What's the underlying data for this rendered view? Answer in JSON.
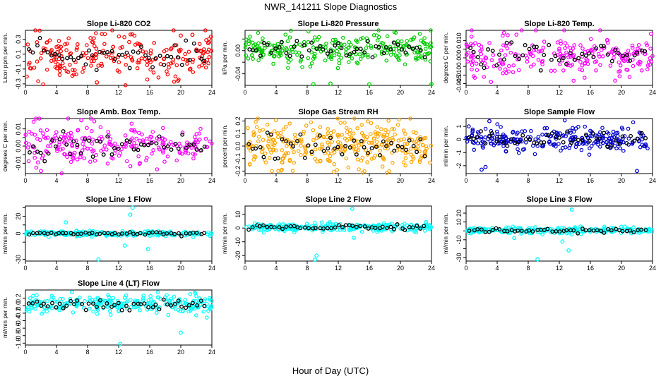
{
  "figure": {
    "title": "NWR_141211  Slope Diagnostics",
    "xlabel": "Hour of Day (UTC)"
  },
  "chart_data": [
    {
      "type": "scatter",
      "title": "Slope Li-820 CO2",
      "ylabel": "Licor ppm per min.",
      "xlim": [
        0,
        24
      ],
      "xticks": [
        0,
        4,
        8,
        12,
        16,
        20,
        24
      ],
      "ylim": [
        -0.32,
        0.42
      ],
      "yticks": [
        -0.3,
        -0.2,
        -0.1,
        0.0,
        0.1,
        0.2,
        0.3
      ],
      "ytick_labels": [
        "-0.3",
        "",
        "-0.1",
        "",
        "0.1",
        "",
        "0.3"
      ],
      "color": "#ff0000",
      "spread": 0.15,
      "center": 0.07,
      "n": 220,
      "outliers": [
        {
          "x": 20,
          "y": 0.35
        },
        {
          "x": 21.5,
          "y": 0.36
        },
        {
          "x": 9.2,
          "y": -0.28
        }
      ]
    },
    {
      "type": "scatter",
      "title": "Slope Li-820 Pressure",
      "ylabel": "kPa per min.",
      "xlim": [
        0,
        24
      ],
      "xticks": [
        0,
        4,
        8,
        12,
        16,
        20,
        24
      ],
      "ylim": [
        -0.06,
        0.035
      ],
      "yticks": [
        -0.04,
        -0.02,
        0.0,
        0.02
      ],
      "ytick_labels": [
        "-0.04",
        "",
        "0.00",
        ""
      ],
      "color": "#00cc00",
      "spread": 0.012,
      "center": 0.002,
      "n": 260,
      "outliers": [
        {
          "x": 8.8,
          "y": -0.058
        },
        {
          "x": 11,
          "y": -0.057
        },
        {
          "x": 16,
          "y": -0.058
        },
        {
          "x": 24,
          "y": -0.058
        },
        {
          "x": 5.6,
          "y": -0.02
        }
      ]
    },
    {
      "type": "scatter",
      "title": "Slope Li-820 Temp.",
      "ylabel": "degrees C per min.",
      "xlim": [
        0,
        24
      ],
      "xticks": [
        0,
        4,
        8,
        12,
        16,
        20,
        24
      ],
      "ylim": [
        -0.016,
        0.016
      ],
      "yticks": [
        -0.015,
        -0.01,
        -0.005,
        0.0,
        0.005,
        0.01
      ],
      "ytick_labels": [
        "-0.015",
        "-0.010",
        "",
        "0.000",
        "",
        "0.010"
      ],
      "color": "#ff00ff",
      "spread": 0.006,
      "center": 0.002,
      "n": 230,
      "outliers": [
        {
          "x": 3.2,
          "y": -0.014
        },
        {
          "x": 23.8,
          "y": 0.014
        }
      ]
    },
    {
      "type": "scatter",
      "title": "Slope Amb. Box Temp.",
      "ylabel": "degrees C per min.",
      "xlim": [
        0,
        24
      ],
      "xticks": [
        0,
        4,
        8,
        12,
        16,
        20,
        24
      ],
      "ylim": [
        -0.016,
        0.016
      ],
      "yticks": [
        -0.01,
        -0.005,
        0.0,
        0.005,
        0.01
      ],
      "ytick_labels": [
        "-0.01",
        "",
        "0.00",
        "",
        "0.01"
      ],
      "color": "#ff00ff",
      "spread": 0.006,
      "center": 0.0005,
      "n": 230,
      "outliers": [
        {
          "x": 2,
          "y": -0.0145
        },
        {
          "x": 7.2,
          "y": 0.015
        }
      ]
    },
    {
      "type": "scatter",
      "title": "Slope Gas Stream RH",
      "ylabel": "percent per min.",
      "xlim": [
        0,
        24
      ],
      "xticks": [
        0,
        4,
        8,
        12,
        16,
        20,
        24
      ],
      "ylim": [
        -0.22,
        0.22
      ],
      "yticks": [
        -0.2,
        -0.1,
        0.0,
        0.1,
        0.2
      ],
      "ytick_labels": [
        "-0.2",
        "-0.1",
        "0.0",
        "0.1",
        "0.2"
      ],
      "color": "#ffa500",
      "spread": 0.09,
      "center": 0.0,
      "n": 320,
      "outliers": []
    },
    {
      "type": "scatter",
      "title": "Slope Sample Flow",
      "ylabel": "ml/min per min.",
      "xlim": [
        0,
        24
      ],
      "xticks": [
        0,
        4,
        8,
        12,
        16,
        20,
        24
      ],
      "ylim": [
        -2.6,
        1.6
      ],
      "yticks": [
        -2,
        -1,
        0,
        1
      ],
      "ytick_labels": [
        "-2",
        "-1",
        "0",
        "1"
      ],
      "color": "#0000cc",
      "spread": 0.45,
      "center": 0.0,
      "n": 260,
      "outliers": [
        {
          "x": 2,
          "y": -2.3
        },
        {
          "x": 2.5,
          "y": -2.1
        },
        {
          "x": 22,
          "y": -2.4
        },
        {
          "x": 3,
          "y": 1.4
        }
      ]
    },
    {
      "type": "scatter",
      "title": "Slope Line 1 Flow",
      "ylabel": "ml/min per min.",
      "xlim": [
        0,
        24
      ],
      "xticks": [
        0,
        4,
        8,
        12,
        16,
        20,
        24
      ],
      "ylim": [
        -32,
        32
      ],
      "yticks": [
        -30,
        -10,
        0,
        10,
        20,
        30
      ],
      "ytick_labels": [
        "-30",
        "",
        "0",
        "",
        "20",
        ""
      ],
      "color": "#00ffff",
      "spread": 1.5,
      "center": 0.0,
      "n": 240,
      "outliers": [
        {
          "x": 13.8,
          "y": 30
        },
        {
          "x": 9.4,
          "y": -30
        },
        {
          "x": 13.5,
          "y": 22
        },
        {
          "x": 5.2,
          "y": 13
        },
        {
          "x": 12.8,
          "y": -14
        },
        {
          "x": 15.8,
          "y": -18
        }
      ]
    },
    {
      "type": "scatter",
      "title": "Slope Line 2 Flow",
      "ylabel": "ml/min per min.",
      "xlim": [
        0,
        24
      ],
      "xticks": [
        0,
        4,
        8,
        12,
        16,
        20,
        24
      ],
      "ylim": [
        -24,
        16
      ],
      "yticks": [
        -20,
        -10,
        0,
        10
      ],
      "ytick_labels": [
        "-20",
        "-10",
        "0",
        "10"
      ],
      "color": "#00ffff",
      "spread": 1.4,
      "center": 0.5,
      "n": 250,
      "outliers": [
        {
          "x": 9.2,
          "y": -20
        },
        {
          "x": 9,
          "y": -23
        },
        {
          "x": 13.8,
          "y": 14
        },
        {
          "x": 14,
          "y": -7
        }
      ]
    },
    {
      "type": "scatter",
      "title": "Slope Line 3 Flow",
      "ylabel": "ml/min per min.",
      "xlim": [
        0,
        24
      ],
      "xticks": [
        0,
        4,
        8,
        12,
        16,
        20,
        24
      ],
      "ylim": [
        -34,
        28
      ],
      "yticks": [
        -30,
        -20,
        -10,
        0,
        10,
        20
      ],
      "ytick_labels": [
        "-30",
        "",
        "-10",
        "",
        "10",
        "20"
      ],
      "color": "#00ffff",
      "spread": 1.8,
      "center": 0.5,
      "n": 240,
      "outliers": [
        {
          "x": 13.6,
          "y": 24
        },
        {
          "x": 9.2,
          "y": -32
        },
        {
          "x": 13.2,
          "y": -22
        },
        {
          "x": 6.2,
          "y": -8
        },
        {
          "x": 12.4,
          "y": -12
        }
      ]
    },
    {
      "type": "scatter",
      "title": "Slope Line 4 (LT) Flow",
      "ylabel": "ml/min per min.",
      "xlim": [
        0,
        24
      ],
      "xticks": [
        0,
        4,
        8,
        12,
        16,
        20,
        24
      ],
      "ylim": [
        -1.05,
        0.42
      ],
      "yticks": [
        -1.0,
        -0.8,
        -0.6,
        -0.4,
        -0.2,
        0.0,
        0.2
      ],
      "ytick_labels": [
        "-1.0",
        "-0.8",
        "-0.6",
        "-0.4",
        "-0.2",
        "0.0",
        "0.2"
      ],
      "color": "#00ffff",
      "spread": 0.12,
      "center": 0.04,
      "n": 260,
      "outliers": [
        {
          "x": 12.2,
          "y": -1.02
        },
        {
          "x": 20,
          "y": -0.72
        },
        {
          "x": 6,
          "y": 0.36
        }
      ]
    }
  ]
}
